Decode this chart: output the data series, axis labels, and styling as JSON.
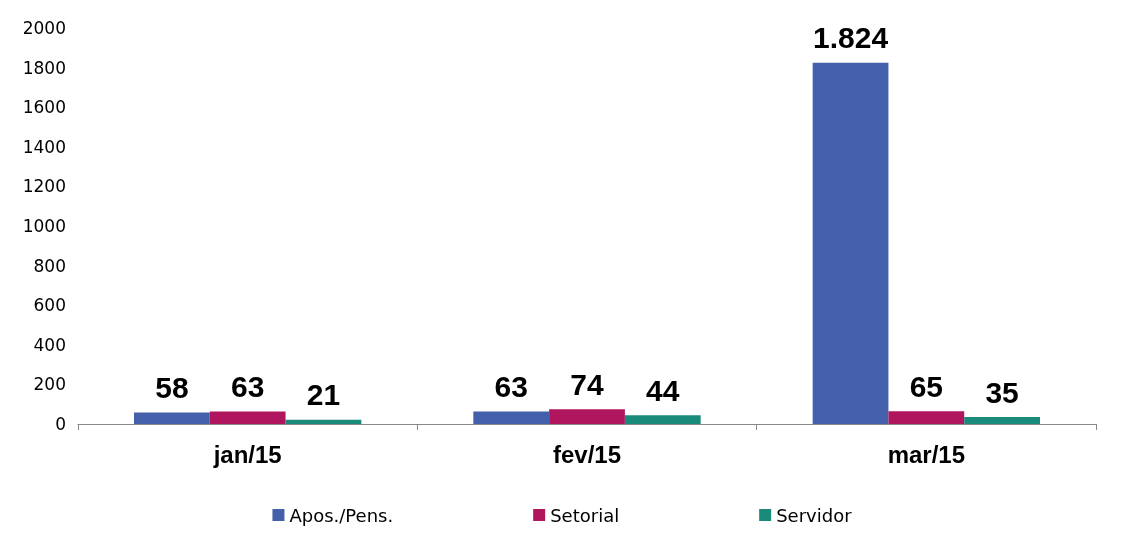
{
  "chart_data": {
    "type": "bar",
    "categories": [
      "jan/15",
      "fev/15",
      "mar/15"
    ],
    "series": [
      {
        "name": "Apos./Pens.",
        "color": "#4460ab",
        "values": [
          58,
          63,
          1824
        ],
        "value_labels": [
          "58",
          "63",
          "1.824"
        ]
      },
      {
        "name": "Setorial",
        "color": "#b0165e",
        "values": [
          63,
          74,
          65
        ],
        "value_labels": [
          "63",
          "74",
          "65"
        ]
      },
      {
        "name": "Servidor",
        "color": "#1a8a7a",
        "values": [
          21,
          44,
          35
        ],
        "value_labels": [
          "21",
          "44",
          "35"
        ]
      }
    ],
    "ylim": [
      0,
      2000
    ],
    "yticks": [
      0,
      200,
      400,
      600,
      800,
      1000,
      1200,
      1400,
      1600,
      1800,
      2000
    ],
    "grid": false,
    "legend": "bottom"
  }
}
